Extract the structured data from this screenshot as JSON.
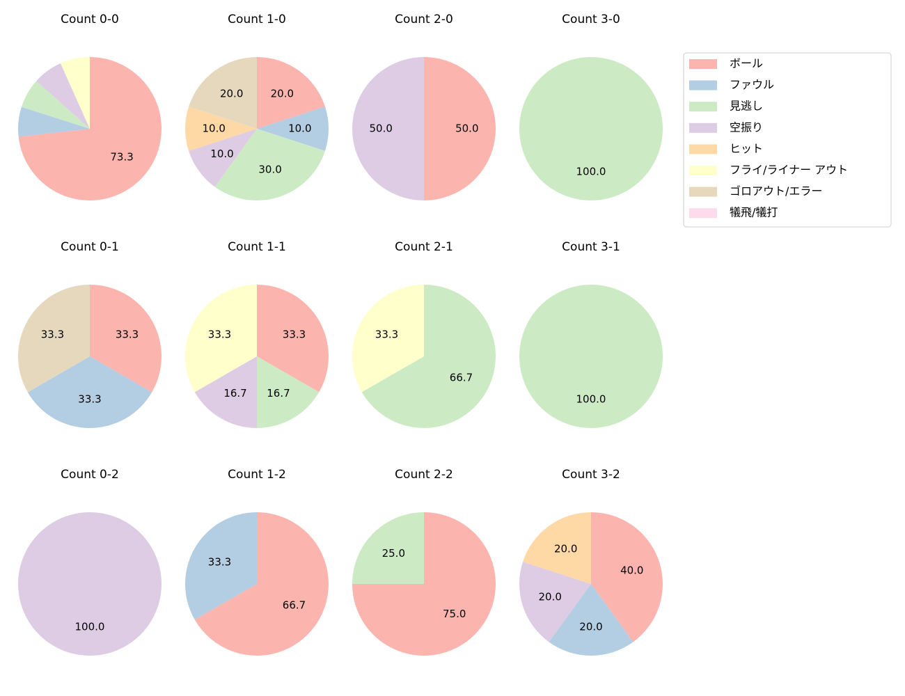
{
  "legend": {
    "labels": [
      "ボール",
      "ファウル",
      "見逃し",
      "空振り",
      "ヒット",
      "フライ/ライナー アウト",
      "ゴロアウト/エラー",
      "犠飛/犠打"
    ],
    "colors": [
      "#fbb4ae",
      "#b3cde3",
      "#ccebc5",
      "#decbe4",
      "#fed9a6",
      "#ffffcc",
      "#e5d8bd",
      "#fddaec"
    ]
  },
  "chart_data": [
    {
      "type": "pie",
      "title": "Count 0-0",
      "values": [
        73.3,
        6.7,
        6.7,
        6.7,
        0,
        6.7,
        0,
        0
      ],
      "value_labels": [
        "73.3",
        null,
        null,
        null,
        null,
        null,
        null,
        null
      ]
    },
    {
      "type": "pie",
      "title": "Count 1-0",
      "values": [
        20,
        10,
        30,
        10,
        10,
        0,
        20,
        0
      ],
      "value_labels": [
        "20.0",
        "10.0",
        "30.0",
        "10.0",
        "10.0",
        null,
        "20.0",
        null
      ]
    },
    {
      "type": "pie",
      "title": "Count 2-0",
      "values": [
        50,
        0,
        0,
        50,
        0,
        0,
        0,
        0
      ],
      "value_labels": [
        "50.0",
        null,
        null,
        "50.0",
        null,
        null,
        null,
        null
      ]
    },
    {
      "type": "pie",
      "title": "Count 3-0",
      "values": [
        0,
        0,
        100,
        0,
        0,
        0,
        0,
        0
      ],
      "value_labels": [
        null,
        null,
        "100.0",
        null,
        null,
        null,
        null,
        null
      ]
    },
    {
      "type": "pie",
      "title": "Count 0-1",
      "values": [
        33.3,
        33.3,
        0,
        0,
        0,
        0,
        33.3,
        0
      ],
      "value_labels": [
        "33.3",
        "33.3",
        null,
        null,
        null,
        null,
        "33.3",
        null
      ]
    },
    {
      "type": "pie",
      "title": "Count 1-1",
      "values": [
        33.3,
        0,
        16.7,
        16.7,
        0,
        33.3,
        0,
        0
      ],
      "value_labels": [
        "33.3",
        null,
        "16.7",
        "16.7",
        null,
        "33.3",
        null,
        null
      ]
    },
    {
      "type": "pie",
      "title": "Count 2-1",
      "values": [
        0,
        0,
        66.7,
        0,
        0,
        33.3,
        0,
        0
      ],
      "value_labels": [
        null,
        null,
        "66.7",
        null,
        null,
        "33.3",
        null,
        null
      ]
    },
    {
      "type": "pie",
      "title": "Count 3-1",
      "values": [
        0,
        0,
        100,
        0,
        0,
        0,
        0,
        0
      ],
      "value_labels": [
        null,
        null,
        "100.0",
        null,
        null,
        null,
        null,
        null
      ]
    },
    {
      "type": "pie",
      "title": "Count 0-2",
      "values": [
        0,
        0,
        0,
        100,
        0,
        0,
        0,
        0
      ],
      "value_labels": [
        null,
        null,
        null,
        "100.0",
        null,
        null,
        null,
        null
      ]
    },
    {
      "type": "pie",
      "title": "Count 1-2",
      "values": [
        66.7,
        33.3,
        0,
        0,
        0,
        0,
        0,
        0
      ],
      "value_labels": [
        "66.7",
        "33.3",
        null,
        null,
        null,
        null,
        null,
        null
      ]
    },
    {
      "type": "pie",
      "title": "Count 2-2",
      "values": [
        75,
        0,
        25,
        0,
        0,
        0,
        0,
        0
      ],
      "value_labels": [
        "75.0",
        null,
        "25.0",
        null,
        null,
        null,
        null,
        null
      ]
    },
    {
      "type": "pie",
      "title": "Count 3-2",
      "values": [
        40,
        20,
        0,
        20,
        20,
        0,
        0,
        0
      ],
      "value_labels": [
        "40.0",
        "20.0",
        null,
        "20.0",
        "20.0",
        null,
        null,
        null
      ]
    }
  ]
}
